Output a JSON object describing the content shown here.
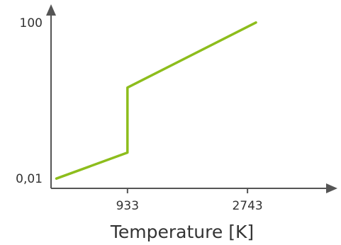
{
  "chart_data": {
    "type": "line",
    "title": "",
    "xlabel": "Temperature [K]",
    "ylabel": "",
    "y_scale": "log",
    "x_ticks": [
      {
        "value": 933,
        "label": "933"
      },
      {
        "value": 2743,
        "label": "2743"
      }
    ],
    "y_ticks": [
      {
        "value": 0.01,
        "label": "0,01"
      },
      {
        "value": 100,
        "label": "100"
      }
    ],
    "xlim": [
      -220,
      3950
    ],
    "ylim": [
      0.00562,
      177.8
    ],
    "series": [
      {
        "color": "#8dbd1c",
        "points": [
          {
            "x": -140,
            "y": 0.01
          },
          {
            "x": 933,
            "y": 0.0463
          },
          {
            "x": 933,
            "y": 2.15
          },
          {
            "x": 2870,
            "y": 100
          }
        ]
      }
    ],
    "grid": false,
    "legend": "none"
  },
  "colors": {
    "axis": "#555555",
    "text": "#333333",
    "line": "#8dbd1c"
  }
}
